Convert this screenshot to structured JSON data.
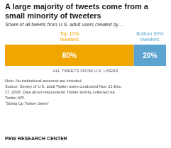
{
  "chart_data": {
    "type": "bar",
    "title": "A large majority of tweets come from a\nsmall minority of tweeters",
    "subtitle": "Share of all tweets from U.S. adult users created by ...",
    "orientation": "horizontal",
    "stacked": true,
    "data_labels": true,
    "tick_labels": false,
    "categories": [
      null
    ],
    "series": [
      {
        "name": "Top 10%\ntweeters",
        "color": "#F0A500",
        "values": [
          80
        ],
        "value_labels": [
          "80%"
        ]
      },
      {
        "name": "Bottom 90%\ntweeters",
        "color": "#5BA4CF",
        "values": [
          20
        ],
        "value_labels": [
          "20%"
        ]
      }
    ],
    "xlim": [
      0,
      100
    ],
    "x_label": "ALL TWEETS FROM U.S. USERS",
    "notes": [
      "Note:  No institutional accounts are included.",
      "Source: Survey of U.S. adult Twitter users conducted Nov. 21-Dec.",
      "17, 2018. Data about respondents' Twitter activity collected via",
      "Twitter API.",
      "\"Sizing Up Twitter Users\""
    ],
    "footer": "PEW RESEARCH CENTER"
  }
}
